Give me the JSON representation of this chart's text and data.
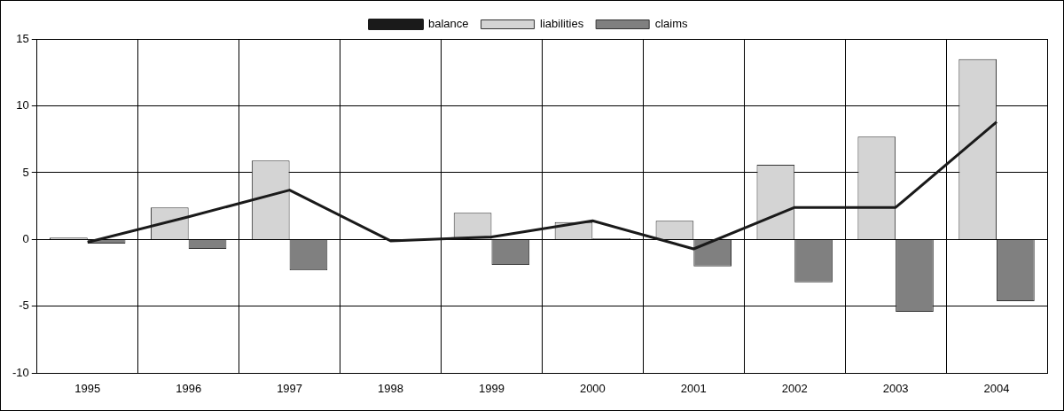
{
  "chart_data": {
    "type": "bar",
    "categories": [
      "1995",
      "1996",
      "1997",
      "1998",
      "1999",
      "2000",
      "2001",
      "2002",
      "2003",
      "2004"
    ],
    "series": [
      {
        "name": "liabilities",
        "color": "#d4d4d4",
        "values": [
          0.15,
          2.4,
          5.9,
          0,
          2.0,
          1.3,
          1.4,
          5.6,
          7.7,
          13.5
        ]
      },
      {
        "name": "claims",
        "color": "#808080",
        "values": [
          -0.3,
          -0.7,
          -2.3,
          0,
          -1.9,
          0.1,
          -2.0,
          -3.2,
          -5.4,
          -4.6
        ]
      },
      {
        "name": "balance",
        "type": "line",
        "color": "#1a1a1a",
        "values": [
          -0.2,
          1.7,
          3.7,
          -0.1,
          0.2,
          1.4,
          -0.7,
          2.4,
          2.4,
          8.8
        ]
      }
    ],
    "ylim": [
      -10,
      15
    ],
    "yticks": [
      -10,
      -5,
      0,
      5,
      10,
      15
    ],
    "grid": true,
    "legend": "top",
    "marker": "none"
  }
}
